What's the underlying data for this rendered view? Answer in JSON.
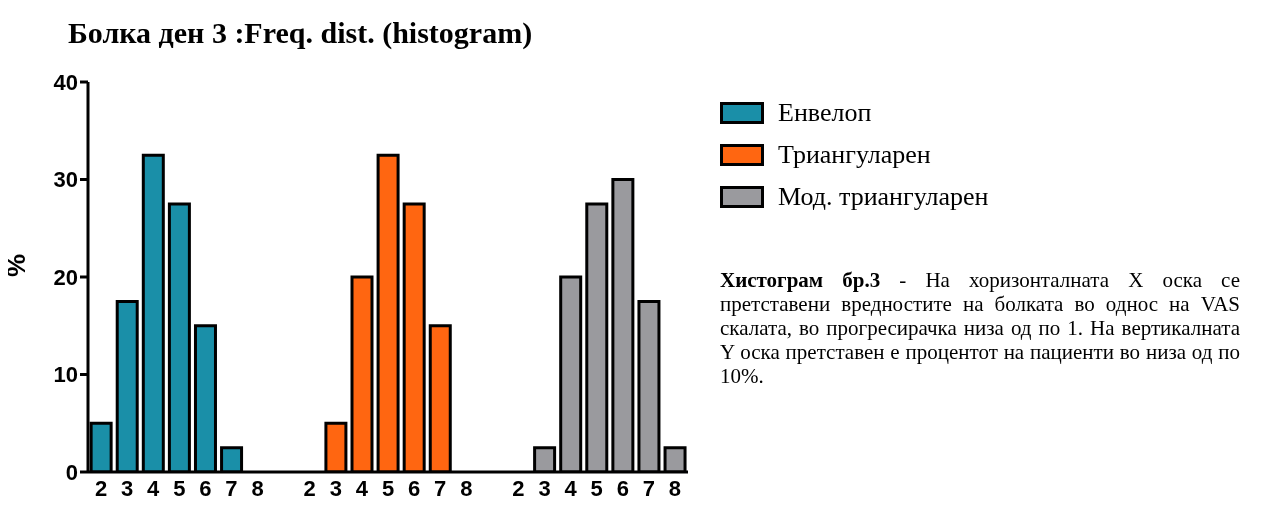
{
  "chart_data": {
    "type": "bar",
    "title": "Болка ден 3 :Freq. dist. (histogram)",
    "ylabel": "%",
    "categories": [
      "2",
      "3",
      "4",
      "5",
      "6",
      "7",
      "8",
      null,
      "2",
      "3",
      "4",
      "5",
      "6",
      "7",
      "8",
      null,
      "2",
      "3",
      "4",
      "5",
      "6",
      "7",
      "8"
    ],
    "series": [
      {
        "name": "Енвелоп",
        "color": "#1a8fa8",
        "values": [
          5,
          17.5,
          32.5,
          27.5,
          15,
          2.5,
          0,
          null,
          null,
          null,
          null,
          null,
          null,
          null,
          null,
          null,
          null,
          null,
          null,
          null,
          null,
          null,
          null
        ]
      },
      {
        "name": "Триангуларен",
        "color": "#ff6611",
        "values": [
          null,
          null,
          null,
          null,
          null,
          null,
          null,
          null,
          0,
          5,
          20,
          32.5,
          27.5,
          15,
          0,
          null,
          null,
          null,
          null,
          null,
          null,
          null,
          null
        ]
      },
      {
        "name": "Мод. триангуларен",
        "color": "#9a9a9e",
        "values": [
          null,
          null,
          null,
          null,
          null,
          null,
          null,
          null,
          null,
          null,
          null,
          null,
          null,
          null,
          null,
          null,
          0,
          2.5,
          20,
          27.5,
          30,
          17.5,
          2.5
        ]
      }
    ],
    "stacked": true,
    "ylim": [
      0,
      40
    ],
    "yticks": [
      0,
      10,
      20,
      30,
      40
    ],
    "grid": false,
    "legend": "right",
    "annotations": [
      "Хистограм бр.3",
      "- На хоризонталната X оска се претставени вредностите на болката во однос на VAS скалата, во прогресирачка низа од по 1. На вертикалната Y оска претставен е процентот на пациенти во низа од по 10%."
    ]
  }
}
